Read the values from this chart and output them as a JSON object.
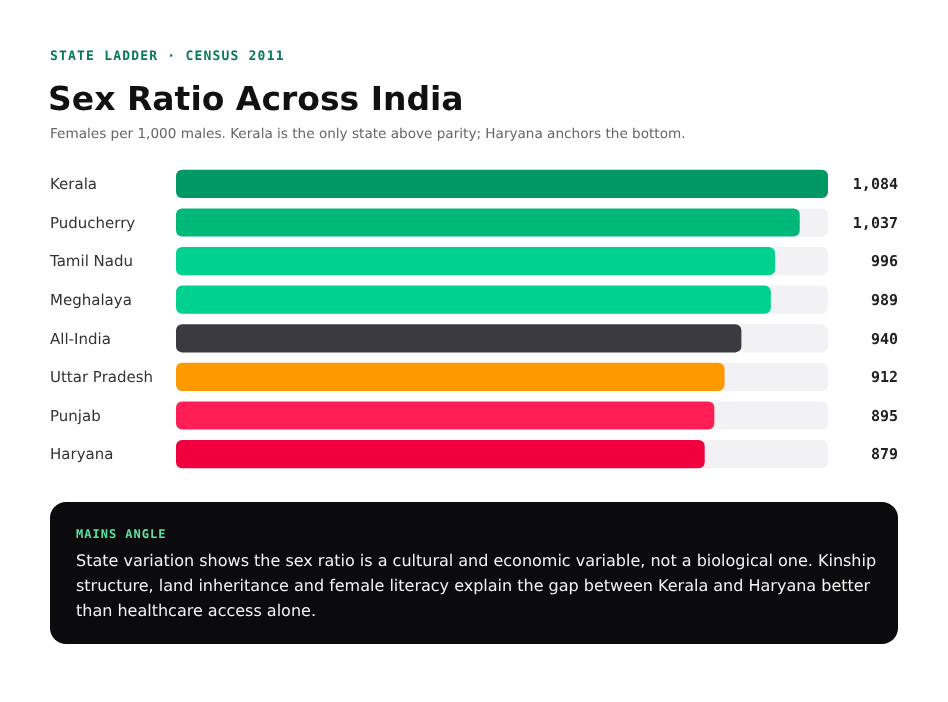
{
  "chart_data": {
    "type": "bar",
    "orientation": "horizontal",
    "title": "Sex Ratio Across India",
    "subtitle": "Females per 1,000 males. Kerala is the only state above parity; Haryana anchors the bottom.",
    "categories": [
      "Kerala",
      "Puducherry",
      "Tamil Nadu",
      "Meghalaya",
      "All-India",
      "Uttar Pradesh",
      "Punjab",
      "Haryana"
    ],
    "values": [
      1084,
      1037,
      996,
      989,
      940,
      912,
      895,
      879
    ],
    "colors": [
      "#009966",
      "#00b87a",
      "#00d18f",
      "#00d18f",
      "#3a3a40",
      "#ff9900",
      "#ff1f55",
      "#f0003f"
    ],
    "value_labels": [
      "1,084",
      "1,037",
      "996",
      "989",
      "940",
      "912",
      "895",
      "879"
    ],
    "tick_labels": "y",
    "annotations": [
      "STATE LADDER · CENSUS 2011",
      "MAINS ANGLE",
      "State variation shows the sex ratio is a cultural and economic variable, not a biological one. Kinship structure, land inheritance and female literacy explain the gap between Kerala and Haryana better than healthcare access alone."
    ]
  }
}
